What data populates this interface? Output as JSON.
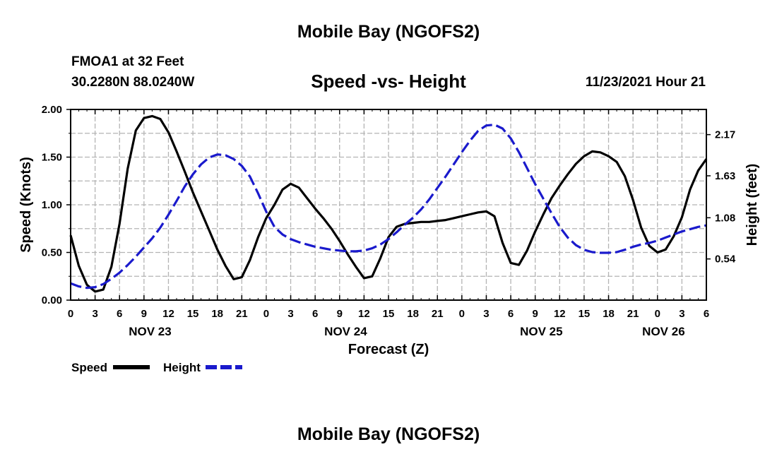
{
  "header": {
    "title_top": "Mobile Bay (NGOFS2)",
    "station": "FMOA1 at 32 Feet",
    "coords": "30.2280N  88.0240W",
    "subtitle": "Speed -vs- Height",
    "datetime": "11/23/2021 Hour 21",
    "title_bottom": "Mobile Bay (NGOFS2)"
  },
  "legend": {
    "speed_label": "Speed",
    "height_label": "Height"
  },
  "colors": {
    "speed": "#000000",
    "height": "#1a1acc",
    "grid": "#b4b4b4"
  },
  "chart_data": {
    "type": "line",
    "title": "Speed -vs- Height",
    "xlabel": "Forecast (Z)",
    "ylabel_left": "Speed (Knots)",
    "ylabel_right": "Height (feet)",
    "xlim": [
      0,
      78
    ],
    "ylim_left": [
      0,
      2.0
    ],
    "ylim_right": [
      0,
      2.5
    ],
    "x_tick_labels": [
      "0",
      "3",
      "6",
      "9",
      "12",
      "15",
      "18",
      "21",
      "0",
      "3",
      "6",
      "9",
      "12",
      "15",
      "18",
      "21",
      "0",
      "3",
      "6",
      "9",
      "12",
      "15",
      "18",
      "21",
      "0",
      "3",
      "6"
    ],
    "y_ticks_left": [
      "0.00",
      "0.50",
      "1.00",
      "1.50",
      "2.00"
    ],
    "y_ticks_right": [
      "0.54",
      "1.08",
      "1.63",
      "2.17"
    ],
    "date_labels": [
      {
        "label": "NOV 23",
        "x": 9.75
      },
      {
        "label": "NOV 24",
        "x": 33.75
      },
      {
        "label": "NOV 25",
        "x": 57.75
      },
      {
        "label": "NOV 26",
        "x": 72.75
      }
    ],
    "grid": true,
    "series": [
      {
        "name": "Speed",
        "axis": "left",
        "style": "solid",
        "x": [
          0,
          1,
          2,
          3,
          4,
          5,
          6,
          7,
          8,
          9,
          10,
          11,
          12,
          13,
          14,
          15,
          16,
          17,
          18,
          19,
          20,
          21,
          22,
          23,
          24,
          25,
          26,
          27,
          28,
          29,
          30,
          31,
          32,
          33,
          34,
          35,
          36,
          37,
          38,
          39,
          40,
          41,
          42,
          43,
          44,
          45,
          46,
          47,
          48,
          49,
          50,
          51,
          52,
          53,
          54,
          55,
          56,
          57,
          58,
          59,
          60,
          61,
          62,
          63,
          64,
          65,
          66,
          67,
          68,
          69,
          70,
          71,
          72,
          73,
          74,
          75,
          76,
          77,
          78
        ],
        "values": [
          0.68,
          0.36,
          0.16,
          0.09,
          0.11,
          0.35,
          0.8,
          1.38,
          1.78,
          1.91,
          1.93,
          1.9,
          1.76,
          1.56,
          1.35,
          1.13,
          0.93,
          0.73,
          0.53,
          0.36,
          0.22,
          0.24,
          0.42,
          0.66,
          0.86,
          1.0,
          1.16,
          1.22,
          1.18,
          1.07,
          0.96,
          0.86,
          0.75,
          0.62,
          0.48,
          0.35,
          0.23,
          0.25,
          0.44,
          0.66,
          0.77,
          0.8,
          0.81,
          0.82,
          0.82,
          0.83,
          0.84,
          0.86,
          0.88,
          0.9,
          0.92,
          0.93,
          0.88,
          0.6,
          0.39,
          0.37,
          0.52,
          0.72,
          0.9,
          1.07,
          1.2,
          1.32,
          1.43,
          1.51,
          1.56,
          1.55,
          1.51,
          1.45,
          1.3,
          1.05,
          0.76,
          0.57,
          0.5,
          0.53,
          0.67,
          0.87,
          1.16,
          1.36,
          1.48
        ]
      },
      {
        "name": "Height",
        "axis": "right",
        "style": "dashed",
        "x": [
          0,
          1,
          2,
          3,
          4,
          5,
          6,
          7,
          8,
          9,
          10,
          11,
          12,
          13,
          14,
          15,
          16,
          17,
          18,
          19,
          20,
          21,
          22,
          23,
          24,
          25,
          26,
          27,
          28,
          29,
          30,
          31,
          32,
          33,
          34,
          35,
          36,
          37,
          38,
          39,
          40,
          41,
          42,
          43,
          44,
          45,
          46,
          47,
          48,
          49,
          50,
          51,
          52,
          53,
          54,
          55,
          56,
          57,
          58,
          59,
          60,
          61,
          62,
          63,
          64,
          65,
          66,
          67,
          68,
          69,
          70,
          71,
          72,
          73,
          74,
          75,
          76,
          77,
          78
        ],
        "values": [
          0.22,
          0.18,
          0.16,
          0.17,
          0.21,
          0.28,
          0.36,
          0.46,
          0.57,
          0.69,
          0.81,
          0.95,
          1.12,
          1.3,
          1.49,
          1.65,
          1.78,
          1.87,
          1.91,
          1.9,
          1.85,
          1.76,
          1.62,
          1.4,
          1.16,
          0.96,
          0.86,
          0.8,
          0.76,
          0.73,
          0.7,
          0.68,
          0.66,
          0.65,
          0.64,
          0.64,
          0.65,
          0.68,
          0.73,
          0.8,
          0.89,
          0.99,
          1.08,
          1.19,
          1.32,
          1.47,
          1.62,
          1.78,
          1.94,
          2.09,
          2.22,
          2.29,
          2.3,
          2.25,
          2.12,
          1.94,
          1.73,
          1.52,
          1.33,
          1.14,
          0.96,
          0.82,
          0.72,
          0.66,
          0.63,
          0.62,
          0.62,
          0.63,
          0.66,
          0.7,
          0.73,
          0.75,
          0.78,
          0.82,
          0.86,
          0.9,
          0.93,
          0.96,
          0.98
        ]
      }
    ]
  }
}
